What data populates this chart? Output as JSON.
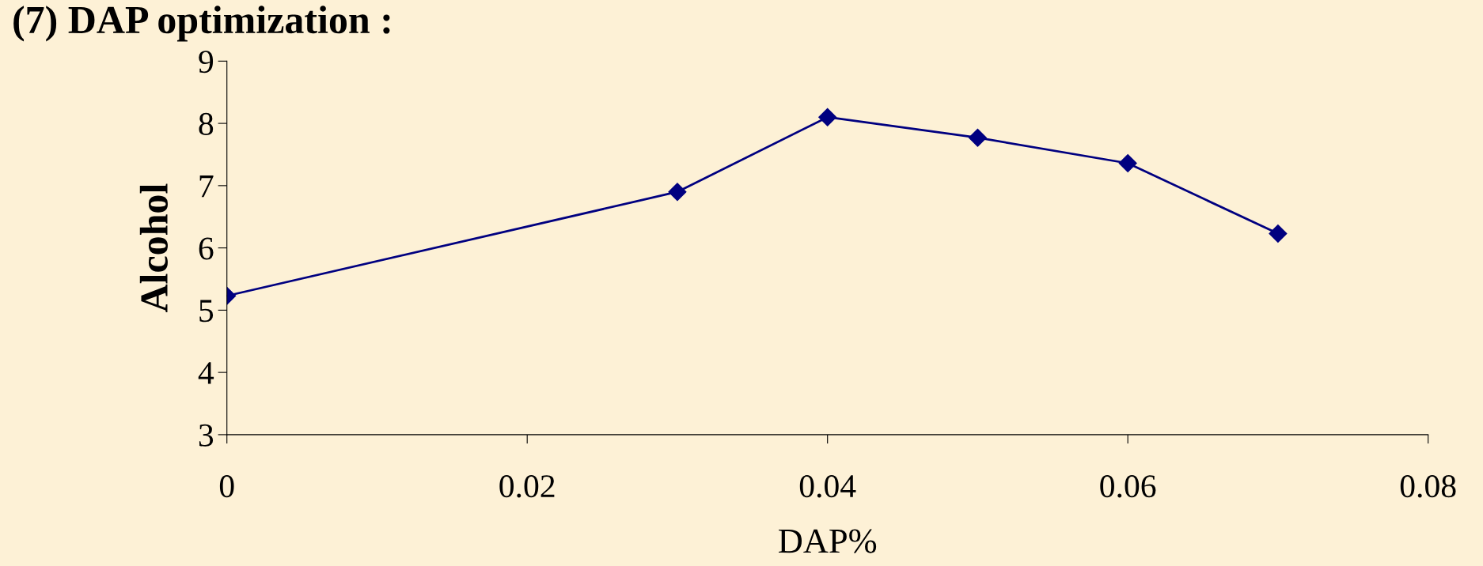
{
  "chart_data": {
    "type": "line",
    "title": "(7) DAP optimization :",
    "xlabel": "DAP%",
    "ylabel": "Alcohol",
    "x": [
      0,
      0.03,
      0.04,
      0.05,
      0.06,
      0.07
    ],
    "series": [
      {
        "color": "#000080",
        "values": [
          5.23,
          6.9,
          8.1,
          7.77,
          7.36,
          6.23
        ]
      }
    ],
    "xlim": [
      0,
      0.08
    ],
    "xticks": [
      0,
      0.02,
      0.04,
      0.06,
      0.08
    ],
    "ylim": [
      3,
      9
    ],
    "yticks": [
      3,
      4,
      5,
      6,
      7,
      8,
      9
    ],
    "marker": "diamond",
    "line_style": "solid",
    "grid": false,
    "legend": false
  }
}
